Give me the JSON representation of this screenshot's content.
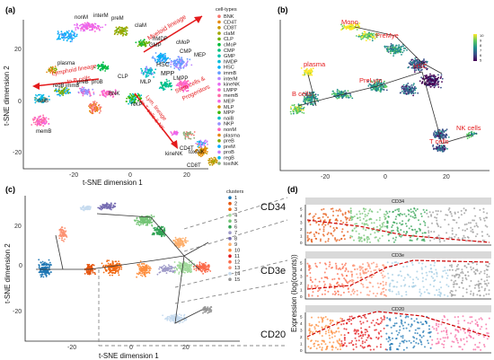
{
  "figure": {
    "panels": {
      "a": "(a)",
      "b": "(b)",
      "c": "(c)",
      "d": "(d)"
    },
    "panel_a": {
      "xlabel": "t-SNE dimension 1",
      "ylabel": "t-SNE dimension 2",
      "yticks": [
        "20",
        "0",
        "-20"
      ],
      "xticks": [
        "-20",
        "0",
        "20"
      ],
      "legend_title": "cell-types",
      "legend_items": [
        "BNK",
        "CD4T",
        "CD8T",
        "cIaM",
        "CLP",
        "cMoP",
        "CMP",
        "GMP",
        "hMDP",
        "HSC",
        "immB",
        "interM",
        "kineNK",
        "LMPP",
        "memB",
        "MEP",
        "MLP",
        "MPP",
        "naiB",
        "NKP",
        "nonM",
        "plasma",
        "preB",
        "preM",
        "proB",
        "regB",
        "toxiNK"
      ],
      "annotations": {
        "myeloid": "Myeloid lineage",
        "lymphoid": "Lymphoid lineage\nto B cells",
        "stem": "Stem cells &\nProgenitors",
        "lym_t": "Lym. lineage\nto T cells & NK"
      },
      "cluster_labels": [
        "nonM",
        "interM",
        "preM",
        "cIaM",
        "hMDP",
        "GMP",
        "cMoP",
        "CMP",
        "HSC",
        "MPP",
        "LMPP",
        "MEP",
        "MLP",
        "CLP",
        "BNK",
        "NKP",
        "proB",
        "preB",
        "immB",
        "regB",
        "naiB",
        "memB",
        "plasma",
        "kineNK",
        "toxiNK",
        "CD4T",
        "CD8T"
      ]
    },
    "panel_b": {
      "labels": [
        "Mono",
        "PreMye",
        "plasma",
        "HSC",
        "PreLym",
        "B cells",
        "T cells",
        "NK cells"
      ],
      "colorbar_ticks": [
        "10",
        "9",
        "8",
        "7",
        "6",
        "5"
      ],
      "xticks": [
        "-20",
        "0",
        "20"
      ]
    },
    "panel_c": {
      "xlabel": "t-SNE dimension 1",
      "ylabel": "t-SNE dimension 2",
      "yticks": [
        "20",
        "0",
        "-20"
      ],
      "xticks": [
        "-20",
        "0",
        "20"
      ],
      "legend_title": "clusters",
      "legend_items": [
        "1",
        "2",
        "3",
        "4",
        "5",
        "6",
        "7",
        "8",
        "9",
        "10",
        "11",
        "12",
        "13",
        "14",
        "15"
      ],
      "callouts": [
        "CD34",
        "CD3e",
        "CD20"
      ]
    },
    "panel_d": {
      "ylabel": "Expression (log(counts))",
      "strips": [
        "CD34",
        "CD3e",
        "CD20"
      ],
      "yticks": [
        "0",
        "1",
        "2",
        "3",
        "4",
        "5"
      ]
    }
  },
  "colors": {
    "myeloid_arrow": "#e41a1c",
    "viridis": [
      "#440154",
      "#3b528b",
      "#21918c",
      "#5ec962",
      "#fde725"
    ]
  }
}
